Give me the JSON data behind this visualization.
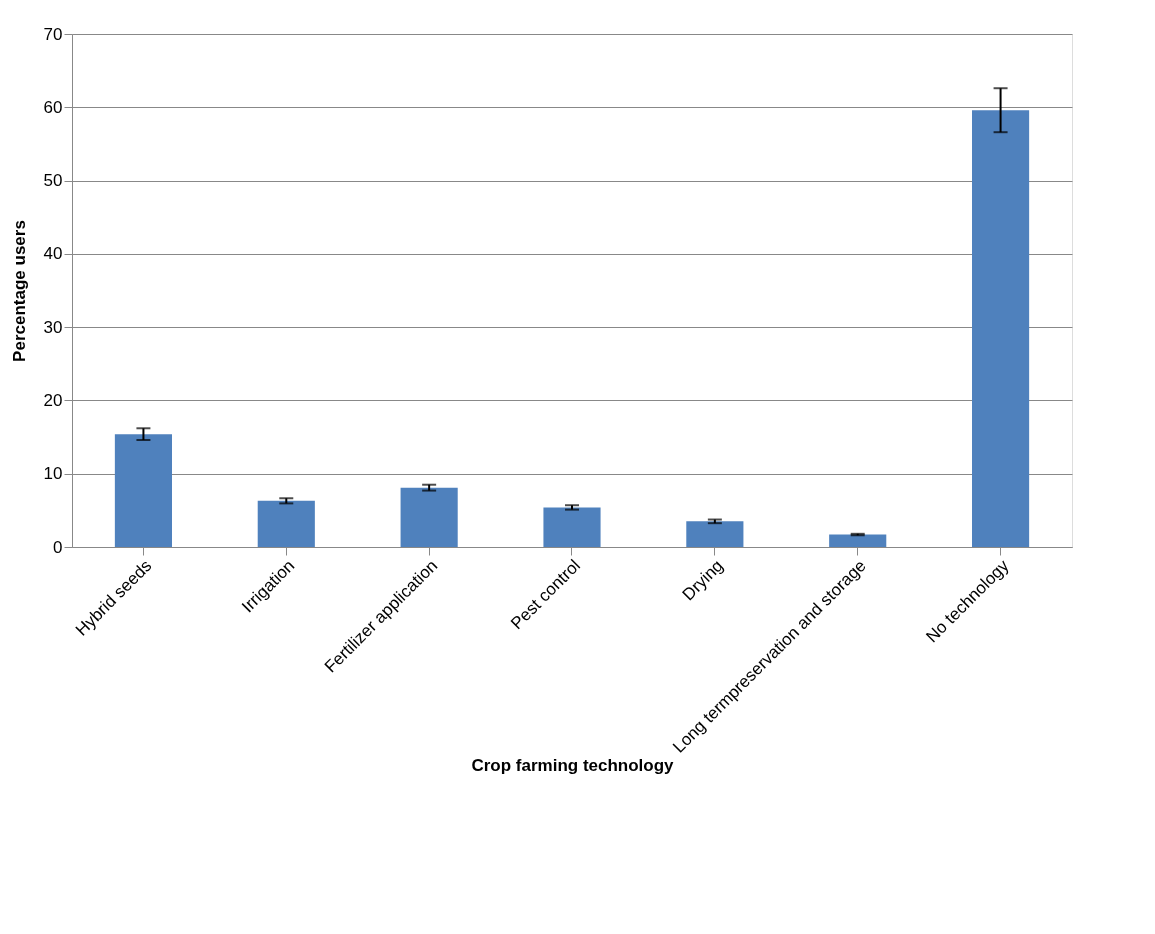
{
  "chart_data": {
    "type": "bar",
    "xlabel": "Crop farming technology",
    "ylabel": "Percentage users",
    "categories": [
      "Hybrid seeds",
      "Irrigation",
      "Fertilizer application",
      "Pest control",
      "Drying",
      "Long termpreservation and storage",
      "No technology"
    ],
    "values": [
      15.4,
      6.3,
      8.1,
      5.4,
      3.5,
      1.7,
      59.6
    ],
    "errors": [
      0.8,
      0.35,
      0.4,
      0.3,
      0.25,
      0.1,
      3.0
    ],
    "color": "#4f81bd",
    "ylim": [
      0,
      70
    ],
    "yticks": [
      0,
      10,
      20,
      30,
      40,
      50,
      60,
      70
    ],
    "grid": "y"
  }
}
